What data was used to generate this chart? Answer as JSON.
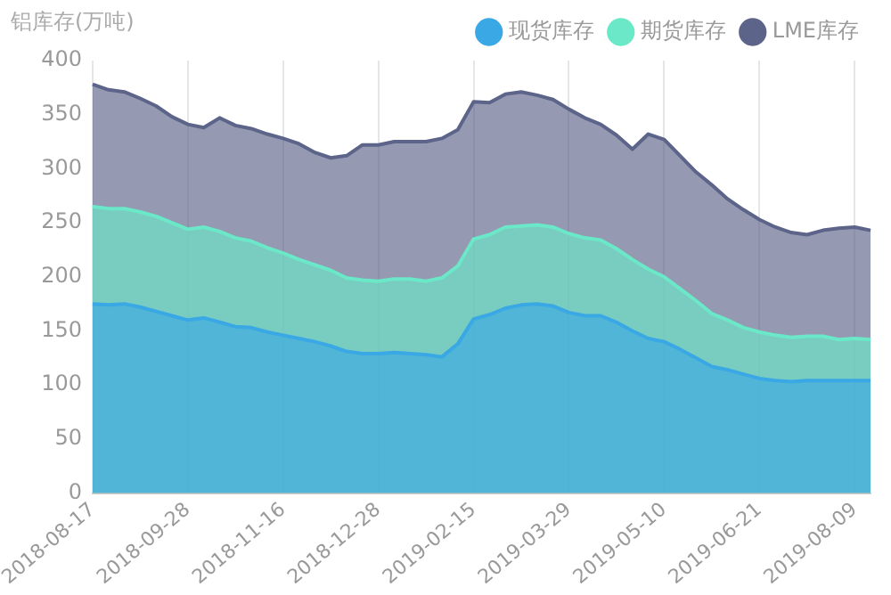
{
  "chart_data": {
    "type": "area",
    "stacked": true,
    "ylabel": "铝库存(万吨)",
    "categories": [
      "2018-08-17",
      null,
      null,
      null,
      null,
      null,
      "2018-09-28",
      null,
      null,
      null,
      null,
      null,
      "2018-11-16",
      null,
      null,
      null,
      null,
      null,
      "2018-12-28",
      null,
      null,
      null,
      null,
      null,
      "2019-02-15",
      null,
      null,
      null,
      null,
      null,
      "2019-03-29",
      null,
      null,
      null,
      null,
      null,
      "2019-05-10",
      null,
      null,
      null,
      null,
      null,
      "2019-06-21",
      null,
      null,
      null,
      null,
      null,
      "2019-08-09",
      null
    ],
    "series": [
      {
        "name": "现货库存",
        "color": "#3aa8e4",
        "values": [
          175,
          174,
          175,
          172,
          168,
          164,
          160,
          162,
          158,
          154,
          153,
          149,
          146,
          143,
          140,
          136,
          131,
          129,
          129,
          130,
          129,
          128,
          126,
          138,
          161,
          165,
          171,
          174,
          175,
          173,
          167,
          164,
          164,
          158,
          150,
          143,
          140,
          133,
          125,
          117,
          114,
          110,
          106,
          104,
          103,
          104,
          104,
          104,
          104,
          104
        ]
      },
      {
        "name": "期货库存",
        "color": "#6ae8c8",
        "values": [
          90,
          89,
          88,
          88,
          88,
          86,
          84,
          84,
          84,
          82,
          80,
          78,
          76,
          73,
          71,
          70,
          68,
          68,
          67,
          68,
          69,
          68,
          73,
          72,
          74,
          74,
          75,
          73,
          73,
          73,
          73,
          72,
          70,
          68,
          66,
          64,
          60,
          56,
          53,
          49,
          46,
          43,
          43,
          42,
          41,
          41,
          41,
          38,
          39,
          38
        ]
      },
      {
        "name": "LME库存",
        "color": "#5c6489",
        "values": [
          113,
          110,
          108,
          105,
          102,
          98,
          97,
          92,
          105,
          104,
          104,
          105,
          106,
          107,
          104,
          104,
          113,
          125,
          126,
          127,
          127,
          129,
          129,
          126,
          127,
          122,
          123,
          124,
          120,
          118,
          115,
          111,
          107,
          105,
          102,
          125,
          127,
          123,
          119,
          119,
          112,
          109,
          104,
          100,
          97,
          94,
          98,
          103,
          103,
          101
        ]
      }
    ],
    "ylim": [
      0,
      400
    ],
    "yticks": [
      0,
      50,
      100,
      150,
      200,
      250,
      300,
      350,
      400
    ],
    "grid": "x",
    "legend": "top right"
  }
}
